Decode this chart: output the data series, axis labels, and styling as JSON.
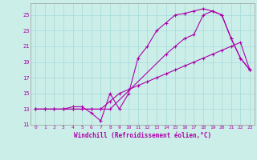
{
  "xlabel": "Windchill (Refroidissement éolien,°C)",
  "xlim": [
    -0.5,
    23.5
  ],
  "ylim": [
    11,
    26.5
  ],
  "yticks": [
    11,
    13,
    15,
    17,
    19,
    21,
    23,
    25
  ],
  "xticks": [
    0,
    1,
    2,
    3,
    4,
    5,
    6,
    7,
    8,
    9,
    10,
    11,
    12,
    13,
    14,
    15,
    16,
    17,
    18,
    19,
    20,
    21,
    22,
    23
  ],
  "bg_color": "#cceee8",
  "grid_color": "#aadddd",
  "line_color": "#aa00aa",
  "line1_x": [
    0,
    1,
    2,
    3,
    4,
    5,
    6,
    7,
    8,
    9,
    10,
    11,
    12,
    13,
    14,
    15,
    16,
    17,
    18,
    19,
    20,
    21,
    22,
    23
  ],
  "line1_y": [
    13,
    13,
    13,
    13,
    13.3,
    13.3,
    12.5,
    11.5,
    15,
    13,
    15,
    19.5,
    21,
    23,
    24,
    25,
    25.2,
    25.5,
    25.8,
    25.5,
    25,
    22,
    19.5,
    18
  ],
  "line2_x": [
    0,
    1,
    2,
    3,
    4,
    5,
    6,
    7,
    8,
    14,
    15,
    16,
    17,
    18,
    19,
    20,
    21,
    22,
    23
  ],
  "line2_y": [
    13,
    13,
    13,
    13,
    13,
    13,
    13,
    13,
    13,
    20,
    21,
    22,
    22.5,
    25,
    25.5,
    25,
    22,
    19.5,
    18
  ],
  "line3_x": [
    0,
    1,
    2,
    3,
    4,
    5,
    6,
    7,
    8,
    9,
    10,
    11,
    12,
    13,
    14,
    15,
    16,
    17,
    18,
    19,
    20,
    21,
    22,
    23
  ],
  "line3_y": [
    13,
    13,
    13,
    13,
    13,
    13,
    13,
    13,
    14,
    15,
    15.5,
    16,
    16.5,
    17,
    17.5,
    18,
    18.5,
    19,
    19.5,
    20,
    20.5,
    21,
    21.5,
    18
  ]
}
